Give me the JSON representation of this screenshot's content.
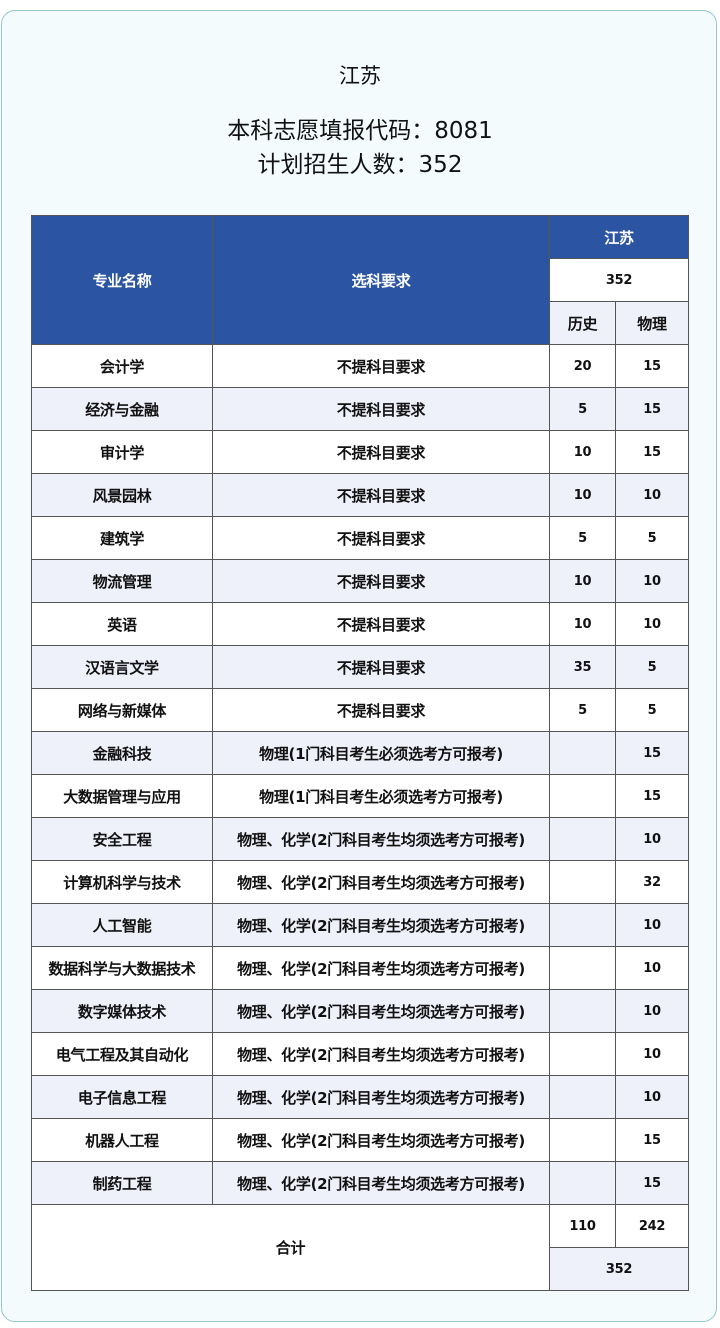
{
  "header": {
    "title": "江苏",
    "code_line": "本科志愿填报代码：8081",
    "plan_line": "计划招生人数：352"
  },
  "table": {
    "col_major": "专业名称",
    "col_req": "选科要求",
    "region": "江苏",
    "region_total": "352",
    "col_history": "历史",
    "col_physics": "物理",
    "rows": [
      {
        "major": "会计学",
        "req": "不提科目要求",
        "history": "20",
        "physics": "15"
      },
      {
        "major": "经济与金融",
        "req": "不提科目要求",
        "history": "5",
        "physics": "15"
      },
      {
        "major": "审计学",
        "req": "不提科目要求",
        "history": "10",
        "physics": "15"
      },
      {
        "major": "风景园林",
        "req": "不提科目要求",
        "history": "10",
        "physics": "10"
      },
      {
        "major": "建筑学",
        "req": "不提科目要求",
        "history": "5",
        "physics": "5"
      },
      {
        "major": "物流管理",
        "req": "不提科目要求",
        "history": "10",
        "physics": "10"
      },
      {
        "major": "英语",
        "req": "不提科目要求",
        "history": "10",
        "physics": "10"
      },
      {
        "major": "汉语言文学",
        "req": "不提科目要求",
        "history": "35",
        "physics": "5"
      },
      {
        "major": "网络与新媒体",
        "req": "不提科目要求",
        "history": "5",
        "physics": "5"
      },
      {
        "major": "金融科技",
        "req": "物理(1门科目考生必须选考方可报考)",
        "history": "",
        "physics": "15"
      },
      {
        "major": "大数据管理与应用",
        "req": "物理(1门科目考生必须选考方可报考)",
        "history": "",
        "physics": "15"
      },
      {
        "major": "安全工程",
        "req": "物理、化学(2门科目考生均须选考方可报考)",
        "history": "",
        "physics": "10"
      },
      {
        "major": "计算机科学与技术",
        "req": "物理、化学(2门科目考生均须选考方可报考)",
        "history": "",
        "physics": "32"
      },
      {
        "major": "人工智能",
        "req": "物理、化学(2门科目考生均须选考方可报考)",
        "history": "",
        "physics": "10"
      },
      {
        "major": "数据科学与大数据技术",
        "req": "物理、化学(2门科目考生均须选考方可报考)",
        "history": "",
        "physics": "10"
      },
      {
        "major": "数字媒体技术",
        "req": "物理、化学(2门科目考生均须选考方可报考)",
        "history": "",
        "physics": "10"
      },
      {
        "major": "电气工程及其自动化",
        "req": "物理、化学(2门科目考生均须选考方可报考)",
        "history": "",
        "physics": "10"
      },
      {
        "major": "电子信息工程",
        "req": "物理、化学(2门科目考生均须选考方可报考)",
        "history": "",
        "physics": "10"
      },
      {
        "major": "机器人工程",
        "req": "物理、化学(2门科目考生均须选考方可报考)",
        "history": "",
        "physics": "15"
      },
      {
        "major": "制药工程",
        "req": "物理、化学(2门科目考生均须选考方可报考)",
        "history": "",
        "physics": "15"
      }
    ],
    "total": {
      "label": "合计",
      "history": "110",
      "physics": "242",
      "sum": "352"
    }
  },
  "colors": {
    "header_blue": "#2b54a3",
    "stripe": "#eef0fa",
    "card_bg": "#f3fbfd",
    "card_border": "#94c6cc"
  }
}
